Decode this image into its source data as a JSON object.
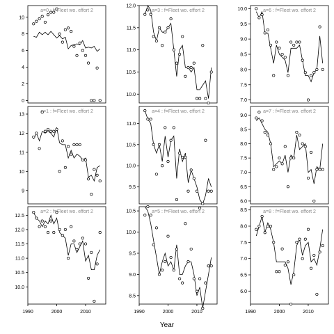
{
  "chart_data": {
    "type": "scatter",
    "xlabel": "Year",
    "x_ticks": [
      1990,
      2000,
      2010
    ],
    "xlim": [
      1990,
      2017
    ],
    "panels": [
      {
        "strip": "a=0 : f=Fleet wo. effort 2",
        "ylim": [
          -0.3,
          11.4
        ],
        "yticks": [
          0,
          2,
          4,
          6,
          8,
          10
        ],
        "x": [
          1992,
          1993,
          1994,
          1995,
          1996,
          1997,
          1998,
          1999,
          2000,
          2001,
          2002,
          2003,
          2004,
          2005,
          2006,
          2007,
          2008,
          2009,
          2010,
          2011,
          2012,
          2013,
          2014,
          2015
        ],
        "points": [
          9.2,
          9.5,
          9.8,
          10.1,
          9.4,
          10.3,
          10.6,
          10.6,
          11.0,
          8.0,
          7.0,
          8.5,
          8.7,
          8.3,
          6.5,
          5.4,
          6.9,
          6.0,
          5.4,
          4.5,
          0.0,
          0.0,
          3.9,
          0.0
        ],
        "fitted": [
          7.7,
          7.6,
          8.2,
          7.9,
          8.2,
          7.9,
          8.3,
          7.9,
          7.5,
          7.8,
          7.4,
          7.6,
          6.2,
          6.6,
          6.7,
          6.8,
          6.7,
          7.2,
          6.3,
          6.4,
          6.3,
          6.5,
          5.9,
          6.2
        ]
      },
      {
        "strip": "a=1 : f=Fleet wo. effort 2",
        "ylim": [
          8.3,
          13.4
        ],
        "yticks": [
          9,
          10,
          11,
          12,
          13
        ],
        "x": [
          1992,
          1993,
          1994,
          1995,
          1996,
          1997,
          1998,
          1999,
          2000,
          2001,
          2002,
          2003,
          2004,
          2005,
          2006,
          2007,
          2008,
          2009,
          2010,
          2011,
          2012,
          2013,
          2014,
          2015
        ],
        "points": [
          11.8,
          12.0,
          11.2,
          13.1,
          12.1,
          12.2,
          12.1,
          12.1,
          12.2,
          10.0,
          11.6,
          10.2,
          11.3,
          10.9,
          11.4,
          11.4,
          11.4,
          10.6,
          10.6,
          9.6,
          8.8,
          10.1,
          9.8,
          9.5
        ],
        "fitted": [
          11.7,
          12.0,
          11.6,
          12.1,
          12.0,
          12.1,
          12.0,
          11.8,
          12.3,
          11.5,
          11.4,
          11.4,
          10.7,
          11.1,
          10.7,
          10.9,
          10.8,
          10.6,
          10.7,
          9.7,
          9.8,
          9.5,
          10.2,
          10.3
        ]
      },
      {
        "strip": "a=2 : f=Fleet wo. effort 2",
        "ylim": [
          9.4,
          12.8
        ],
        "yticks": [
          10.0,
          10.5,
          11.0,
          11.5,
          12.0,
          12.5
        ],
        "x": [
          1992,
          1993,
          1994,
          1995,
          1996,
          1997,
          1998,
          1999,
          2000,
          2001,
          2002,
          2003,
          2004,
          2005,
          2006,
          2007,
          2008,
          2009,
          2010,
          2011,
          2012,
          2013,
          2014,
          2015
        ],
        "points": [
          12.6,
          12.4,
          12.1,
          12.3,
          12.1,
          11.9,
          12.3,
          11.9,
          12.6,
          12.0,
          11.8,
          12.0,
          11.0,
          12.1,
          11.6,
          11.3,
          11.5,
          11.7,
          11.5,
          10.3,
          11.2,
          9.5,
          10.8,
          11.9
        ],
        "fitted": [
          12.6,
          12.4,
          12.3,
          12.1,
          12.3,
          12.2,
          12.5,
          12.2,
          12.4,
          11.9,
          11.8,
          11.7,
          11.1,
          11.5,
          11.5,
          11.2,
          11.4,
          11.6,
          10.9,
          11.1,
          10.6,
          10.6,
          11.1,
          11.3
        ]
      },
      {
        "strip": "a=3 : f=Fleet wo. effort 2",
        "ylim": [
          9.8,
          12.0
        ],
        "yticks": [
          10.0,
          10.5,
          11.0,
          11.5,
          12.0
        ],
        "x": [
          1992,
          1993,
          1994,
          1995,
          1996,
          1997,
          1998,
          1999,
          2000,
          2001,
          2002,
          2003,
          2004,
          2005,
          2006,
          2007,
          2008,
          2009,
          2010,
          2011,
          2012,
          2013,
          2014,
          2015
        ],
        "points": [
          11.8,
          11.9,
          11.8,
          11.3,
          11.2,
          11.5,
          11.1,
          11.4,
          11.5,
          11.7,
          11.0,
          10.7,
          10.9,
          11.3,
          10.4,
          10.6,
          10.6,
          10.7,
          9.9,
          9.9,
          11.1,
          9.9,
          9.8,
          10.5
        ],
        "fitted": [
          11.8,
          12.0,
          11.9,
          11.4,
          11.2,
          11.5,
          11.4,
          11.4,
          11.5,
          11.6,
          11.0,
          10.4,
          11.0,
          11.1,
          10.6,
          10.6,
          10.5,
          10.6,
          10.1,
          10.1,
          10.2,
          10.3,
          9.9,
          10.6
        ]
      },
      {
        "strip": "a=4 : f=Fleet wo. effort 2",
        "ylim": [
          9.1,
          11.4
        ],
        "yticks": [
          9.5,
          10.0,
          10.5,
          11.0
        ],
        "x": [
          1992,
          1993,
          1994,
          1995,
          1996,
          1997,
          1998,
          1999,
          2000,
          2001,
          2002,
          2003,
          2004,
          2005,
          2006,
          2007,
          2008,
          2009,
          2010,
          2011,
          2012,
          2013,
          2014,
          2015
        ],
        "points": [
          11.3,
          11.1,
          11.1,
          10.5,
          9.8,
          10.5,
          10.0,
          10.9,
          10.1,
          10.6,
          10.9,
          9.2,
          10.3,
          10.2,
          10.2,
          9.4,
          9.9,
          9.7,
          9.4,
          9.0,
          9.1,
          10.6,
          9.4,
          9.4
        ],
        "fitted": [
          11.3,
          11.1,
          11.0,
          10.5,
          10.3,
          10.5,
          10.1,
          10.7,
          10.2,
          10.6,
          10.7,
          9.7,
          10.4,
          10.1,
          10.3,
          9.6,
          9.9,
          9.7,
          9.5,
          9.2,
          9.1,
          9.3,
          9.7,
          9.5
        ]
      },
      {
        "strip": "a=5 : f=Fleet wo. effort 2",
        "ylim": [
          8.3,
          10.6
        ],
        "yticks": [
          8.5,
          9.0,
          9.5,
          10.0,
          10.5
        ],
        "x": [
          1992,
          1993,
          1994,
          1995,
          1996,
          1997,
          1998,
          1999,
          2000,
          2001,
          2002,
          2003,
          2004,
          2005,
          2006,
          2007,
          2008,
          2009,
          2010,
          2011,
          2012,
          2013,
          2014,
          2015
        ],
        "points": [
          10.4,
          10.6,
          10.4,
          9.7,
          10.1,
          9.0,
          9.1,
          9.3,
          9.9,
          9.4,
          9.1,
          9.6,
          8.9,
          8.8,
          10.2,
          9.3,
          9.6,
          8.9,
          8.6,
          8.9,
          8.2,
          8.8,
          9.2,
          9.2
        ],
        "fitted": [
          10.6,
          10.5,
          10.2,
          9.8,
          9.4,
          9.0,
          9.3,
          9.5,
          9.2,
          9.3,
          9.1,
          9.7,
          9.0,
          9.0,
          9.2,
          9.3,
          9.3,
          9.0,
          8.5,
          8.7,
          8.2,
          8.6,
          9.0,
          9.4
        ]
      },
      {
        "strip": "a=6 : f=Fleet wo. effort 2",
        "ylim": [
          6.9,
          10.1
        ],
        "yticks": [
          7.0,
          7.5,
          8.0,
          8.5,
          9.0,
          9.5,
          10.0
        ],
        "x": [
          1992,
          1993,
          1994,
          1995,
          1996,
          1997,
          1998,
          1999,
          2000,
          2001,
          2002,
          2003,
          2004,
          2005,
          2006,
          2007,
          2008,
          2009,
          2010,
          2011,
          2012,
          2013,
          2014,
          2015
        ],
        "points": [
          10.0,
          9.7,
          9.8,
          9.2,
          9.3,
          8.8,
          7.8,
          8.9,
          8.7,
          8.5,
          8.4,
          7.8,
          8.9,
          8.8,
          8.9,
          8.9,
          8.3,
          7.9,
          7.0,
          7.8,
          7.9,
          8.0,
          9.4,
          8.0
        ],
        "fitted": [
          9.9,
          9.7,
          9.9,
          9.2,
          9.2,
          8.7,
          8.2,
          8.8,
          8.5,
          8.4,
          8.3,
          7.9,
          8.7,
          8.7,
          8.7,
          8.8,
          8.3,
          7.8,
          7.8,
          7.6,
          7.9,
          8.0,
          9.1,
          8.2
        ]
      },
      {
        "strip": "a=7 : f=Fleet wo. effort 2",
        "ylim": [
          5.9,
          9.3
        ],
        "yticks": [
          6.0,
          6.5,
          7.0,
          7.5,
          8.0,
          8.5,
          9.0
        ],
        "x": [
          1992,
          1993,
          1994,
          1995,
          1996,
          1997,
          1998,
          1999,
          2000,
          2001,
          2002,
          2003,
          2004,
          2005,
          2006,
          2007,
          2008,
          2009,
          2010,
          2011,
          2012,
          2013,
          2014,
          2015
        ],
        "points": [
          8.9,
          9.1,
          8.8,
          8.4,
          8.3,
          8.0,
          7.1,
          7.2,
          7.5,
          7.3,
          7.9,
          6.5,
          7.5,
          7.5,
          8.4,
          8.3,
          8.0,
          7.9,
          6.8,
          7.7,
          6.0,
          7.1,
          7.1,
          7.1
        ],
        "fitted": [
          8.8,
          8.9,
          8.7,
          8.5,
          8.4,
          8.0,
          7.2,
          7.3,
          7.4,
          7.3,
          7.6,
          7.0,
          7.6,
          7.5,
          8.3,
          7.8,
          7.9,
          8.0,
          7.0,
          7.1,
          6.6,
          7.2,
          7.1,
          8.0
        ]
      },
      {
        "strip": "a=8 : f=Fleet wo. effort 2",
        "ylim": [
          5.6,
          8.6
        ],
        "yticks": [
          6.0,
          6.5,
          7.0,
          7.5,
          8.0,
          8.5
        ],
        "x": [
          1992,
          1993,
          1994,
          1995,
          1996,
          1997,
          1998,
          1999,
          2000,
          2001,
          2002,
          2003,
          2004,
          2005,
          2006,
          2007,
          2008,
          2009,
          2010,
          2011,
          2012,
          2013,
          2014,
          2015
        ],
        "points": [
          7.9,
          8.0,
          8.3,
          7.8,
          8.0,
          8.0,
          7.5,
          6.6,
          6.6,
          7.3,
          6.8,
          6.9,
          5.6,
          6.5,
          7.5,
          7.6,
          7.0,
          7.6,
          7.9,
          6.7,
          7.1,
          5.9,
          7.2,
          7.4
        ],
        "fitted": [
          7.7,
          8.0,
          8.3,
          7.8,
          8.1,
          7.9,
          7.5,
          6.9,
          6.9,
          6.9,
          6.9,
          6.7,
          6.2,
          6.6,
          7.4,
          7.6,
          7.1,
          7.4,
          7.5,
          6.9,
          7.0,
          6.8,
          7.3,
          7.9
        ]
      }
    ]
  }
}
